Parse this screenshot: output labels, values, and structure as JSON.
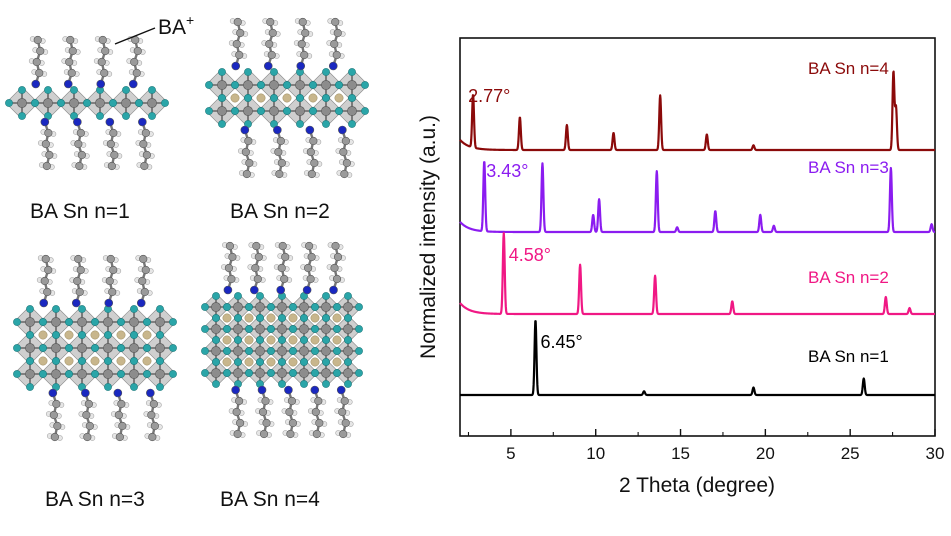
{
  "figure": {
    "ba_label": "BA",
    "ba_superscript": "+",
    "structure_labels": [
      "BA Sn n=1",
      "BA Sn n=2",
      "BA Sn n=3",
      "BA Sn n=4"
    ]
  },
  "colors": {
    "n4": "#8b0a0a",
    "n3": "#8b1cf0",
    "n2": "#f01884",
    "n1": "#000000",
    "octahedron": "#a8a8a8",
    "halide": "#2aa5a8",
    "tin": "#8c8c8c",
    "carbon": "#9a9a9a",
    "hydrogen": "#e6e6e6",
    "nitrogen": "#1a28c0",
    "cation": "#c8b68c"
  },
  "chart_data": {
    "type": "line",
    "xlabel": "2 Theta (degree)",
    "ylabel": "Normalized intensity (a.u.)",
    "xlim": [
      2,
      30
    ],
    "xticks": [
      5,
      10,
      15,
      20,
      25,
      30
    ],
    "grid": false,
    "series": [
      {
        "name": "BA Sn n=4",
        "baseline": 3,
        "peak_label": "2.77°",
        "peaks": [
          [
            2.77,
            0.68
          ],
          [
            5.53,
            0.42
          ],
          [
            8.3,
            0.32
          ],
          [
            11.05,
            0.22
          ],
          [
            13.8,
            0.7
          ],
          [
            16.55,
            0.2
          ],
          [
            19.3,
            0.06
          ],
          [
            27.55,
            1.0
          ],
          [
            27.7,
            0.55
          ]
        ]
      },
      {
        "name": "BA Sn n=3",
        "baseline": 2,
        "peak_label": "3.43°",
        "peaks": [
          [
            3.43,
            0.9
          ],
          [
            6.86,
            0.88
          ],
          [
            9.85,
            0.22
          ],
          [
            10.2,
            0.42
          ],
          [
            13.6,
            0.78
          ],
          [
            14.8,
            0.06
          ],
          [
            17.05,
            0.27
          ],
          [
            19.7,
            0.22
          ],
          [
            20.5,
            0.08
          ],
          [
            27.4,
            0.82
          ],
          [
            29.8,
            0.1
          ]
        ]
      },
      {
        "name": "BA Sn n=2",
        "baseline": 1,
        "peak_label": "4.58°",
        "peaks": [
          [
            4.58,
            0.95
          ],
          [
            9.08,
            0.58
          ],
          [
            13.5,
            0.45
          ],
          [
            18.05,
            0.15
          ],
          [
            27.1,
            0.2
          ],
          [
            28.5,
            0.07
          ]
        ]
      },
      {
        "name": "BA Sn n=1",
        "baseline": 0,
        "peak_label": "6.45°",
        "peaks": [
          [
            6.45,
            1.0
          ],
          [
            12.85,
            0.05
          ],
          [
            19.3,
            0.1
          ],
          [
            25.8,
            0.22
          ]
        ]
      }
    ]
  }
}
